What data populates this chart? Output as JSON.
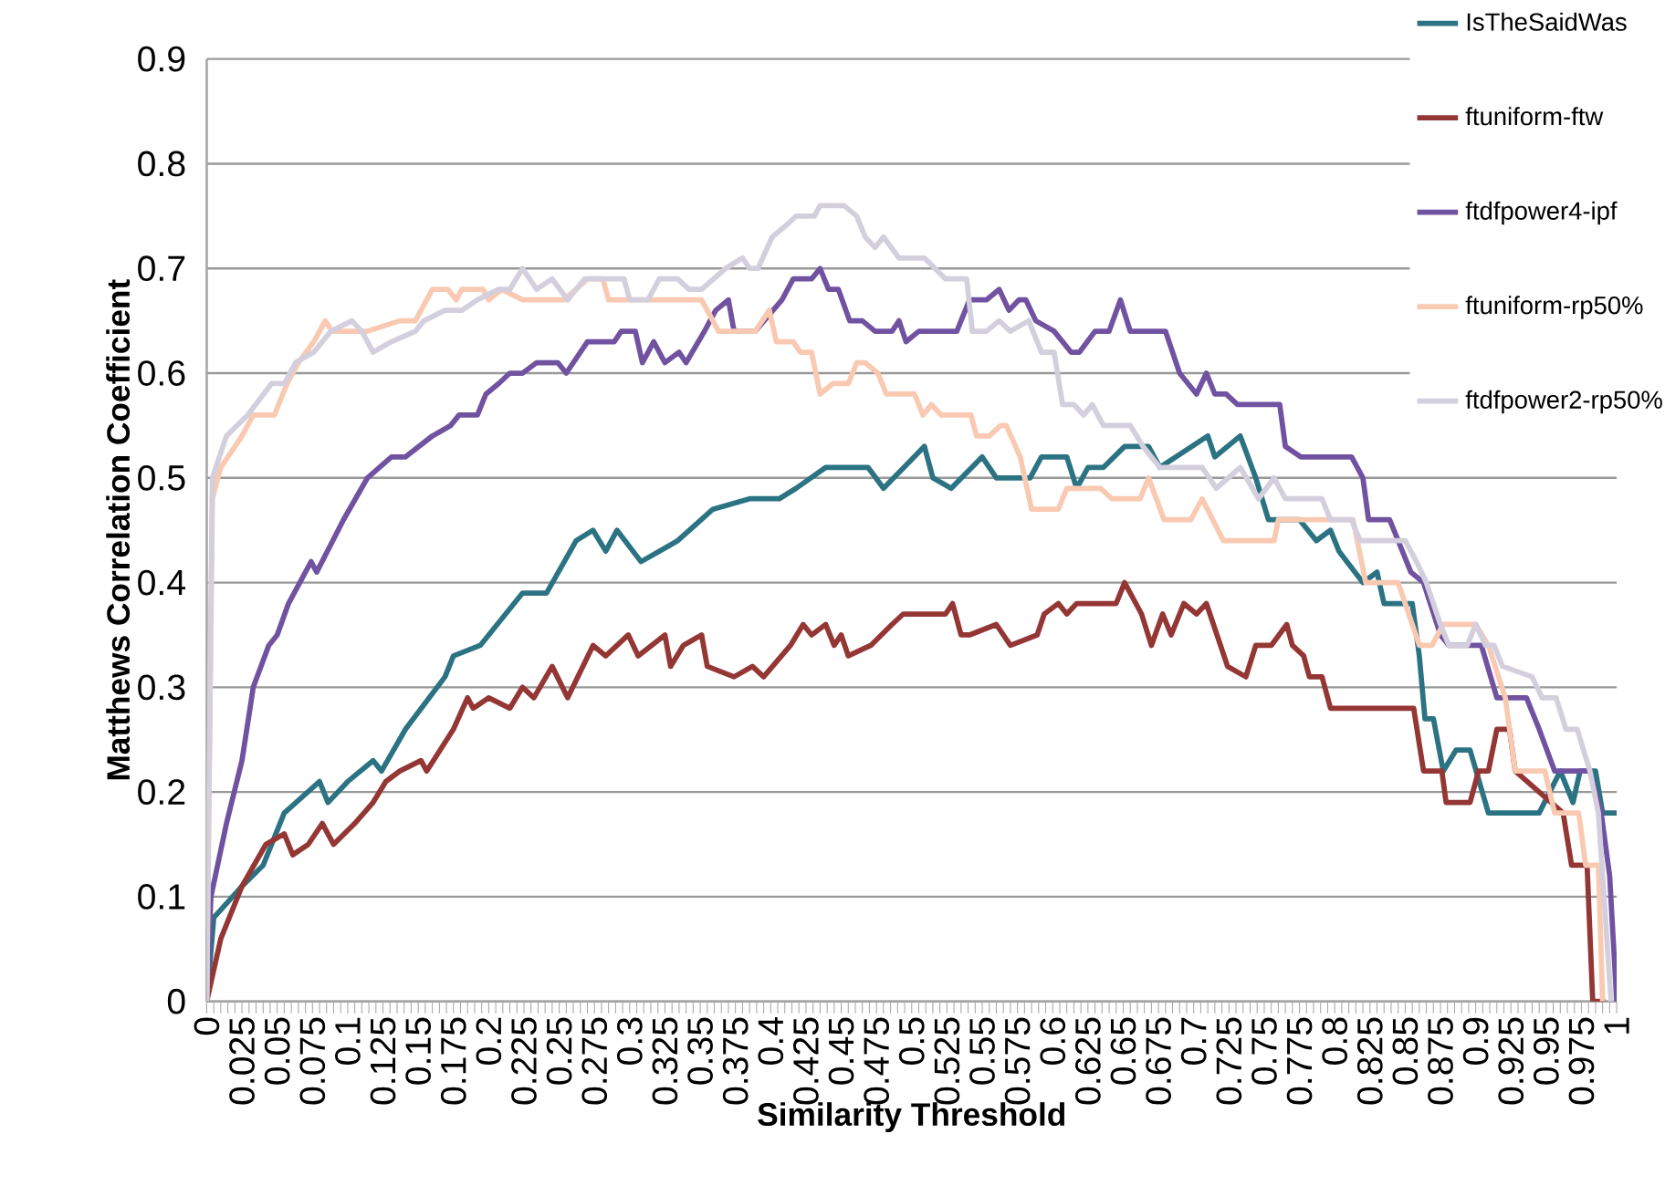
{
  "chart_data": {
    "type": "line",
    "xlabel": "Similarity Threshold",
    "ylabel": "Matthews Correlation Coefficient",
    "xlim": [
      0,
      1
    ],
    "ylim": [
      0,
      0.9
    ],
    "xticks": [
      0,
      0.025,
      0.05,
      0.075,
      0.1,
      0.125,
      0.15,
      0.175,
      0.2,
      0.225,
      0.25,
      0.275,
      0.3,
      0.325,
      0.35,
      0.375,
      0.4,
      0.425,
      0.45,
      0.475,
      0.5,
      0.525,
      0.55,
      0.575,
      0.6,
      0.625,
      0.65,
      0.675,
      0.7,
      0.725,
      0.75,
      0.775,
      0.8,
      0.825,
      0.85,
      0.875,
      0.9,
      0.925,
      0.95,
      0.975,
      1
    ],
    "yticks": [
      0,
      0.1,
      0.2,
      0.3,
      0.4,
      0.5,
      0.6,
      0.7,
      0.8,
      0.9
    ],
    "grid": "y",
    "legend": "top right",
    "marker": "none",
    "line_style": "solid",
    "series": [
      {
        "name": "IsTheSaidWas",
        "color": "#2b7383",
        "x": [
          0,
          0.005,
          0.025,
          0.04,
          0.055,
          0.08,
          0.086,
          0.1,
          0.118,
          0.124,
          0.141,
          0.169,
          0.175,
          0.194,
          0.224,
          0.241,
          0.262,
          0.274,
          0.283,
          0.291,
          0.308,
          0.321,
          0.334,
          0.359,
          0.385,
          0.406,
          0.418,
          0.439,
          0.469,
          0.48,
          0.509,
          0.515,
          0.528,
          0.55,
          0.56,
          0.584,
          0.592,
          0.61,
          0.617,
          0.625,
          0.636,
          0.651,
          0.668,
          0.676,
          0.71,
          0.715,
          0.733,
          0.744,
          0.753,
          0.775,
          0.787,
          0.797,
          0.803,
          0.82,
          0.83,
          0.835,
          0.855,
          0.86,
          0.864,
          0.87,
          0.877,
          0.886,
          0.896,
          0.909,
          0.945,
          0.96,
          0.969,
          0.974,
          0.985,
          0.99,
          1
        ],
        "values": [
          0,
          0.08,
          0.11,
          0.13,
          0.18,
          0.21,
          0.19,
          0.21,
          0.23,
          0.22,
          0.26,
          0.31,
          0.33,
          0.34,
          0.39,
          0.39,
          0.44,
          0.45,
          0.43,
          0.45,
          0.42,
          0.43,
          0.44,
          0.47,
          0.48,
          0.48,
          0.49,
          0.51,
          0.51,
          0.49,
          0.53,
          0.5,
          0.49,
          0.52,
          0.5,
          0.5,
          0.52,
          0.52,
          0.49,
          0.51,
          0.51,
          0.53,
          0.53,
          0.51,
          0.54,
          0.52,
          0.54,
          0.5,
          0.46,
          0.46,
          0.44,
          0.45,
          0.43,
          0.4,
          0.41,
          0.38,
          0.38,
          0.33,
          0.27,
          0.27,
          0.22,
          0.24,
          0.24,
          0.18,
          0.18,
          0.22,
          0.19,
          0.22,
          0.22,
          0.18,
          0.18
        ]
      },
      {
        "name": "ftuniform-ftw",
        "color": "#943634",
        "x": [
          0,
          0.01,
          0.025,
          0.042,
          0.055,
          0.061,
          0.072,
          0.082,
          0.09,
          0.105,
          0.118,
          0.127,
          0.137,
          0.152,
          0.156,
          0.175,
          0.185,
          0.189,
          0.2,
          0.215,
          0.224,
          0.232,
          0.245,
          0.256,
          0.274,
          0.283,
          0.291,
          0.299,
          0.306,
          0.325,
          0.329,
          0.338,
          0.351,
          0.355,
          0.374,
          0.387,
          0.395,
          0.414,
          0.423,
          0.429,
          0.439,
          0.445,
          0.45,
          0.455,
          0.471,
          0.486,
          0.494,
          0.524,
          0.529,
          0.535,
          0.541,
          0.56,
          0.57,
          0.589,
          0.594,
          0.604,
          0.61,
          0.617,
          0.645,
          0.651,
          0.655,
          0.663,
          0.67,
          0.678,
          0.684,
          0.693,
          0.702,
          0.709,
          0.724,
          0.737,
          0.744,
          0.755,
          0.766,
          0.77,
          0.778,
          0.782,
          0.791,
          0.797,
          0.856,
          0.863,
          0.876,
          0.879,
          0.896,
          0.902,
          0.909,
          0.915,
          0.924,
          0.928,
          0.962,
          0.968,
          0.979,
          0.983,
          0.992
        ],
        "values": [
          0,
          0.06,
          0.11,
          0.15,
          0.16,
          0.14,
          0.15,
          0.17,
          0.15,
          0.17,
          0.19,
          0.21,
          0.22,
          0.23,
          0.22,
          0.26,
          0.29,
          0.28,
          0.29,
          0.28,
          0.3,
          0.29,
          0.32,
          0.29,
          0.34,
          0.33,
          0.34,
          0.35,
          0.33,
          0.35,
          0.32,
          0.34,
          0.35,
          0.32,
          0.31,
          0.32,
          0.31,
          0.34,
          0.36,
          0.35,
          0.36,
          0.34,
          0.35,
          0.33,
          0.34,
          0.36,
          0.37,
          0.37,
          0.38,
          0.35,
          0.35,
          0.36,
          0.34,
          0.35,
          0.37,
          0.38,
          0.37,
          0.38,
          0.38,
          0.4,
          0.39,
          0.37,
          0.34,
          0.37,
          0.35,
          0.38,
          0.37,
          0.38,
          0.32,
          0.31,
          0.34,
          0.34,
          0.36,
          0.34,
          0.33,
          0.31,
          0.31,
          0.28,
          0.28,
          0.22,
          0.22,
          0.19,
          0.19,
          0.22,
          0.22,
          0.26,
          0.26,
          0.22,
          0.18,
          0.13,
          0.13,
          0,
          0
        ]
      },
      {
        "name": "ftdfpower4-ipf",
        "color": "#7052a0",
        "x": [
          0,
          0.003,
          0.014,
          0.025,
          0.033,
          0.044,
          0.05,
          0.058,
          0.074,
          0.078,
          0.097,
          0.114,
          0.131,
          0.141,
          0.16,
          0.173,
          0.179,
          0.192,
          0.198,
          0.207,
          0.215,
          0.224,
          0.234,
          0.249,
          0.255,
          0.27,
          0.289,
          0.294,
          0.304,
          0.309,
          0.317,
          0.325,
          0.335,
          0.34,
          0.353,
          0.361,
          0.37,
          0.374,
          0.389,
          0.408,
          0.416,
          0.429,
          0.435,
          0.441,
          0.448,
          0.456,
          0.465,
          0.474,
          0.486,
          0.491,
          0.496,
          0.505,
          0.532,
          0.541,
          0.553,
          0.562,
          0.569,
          0.576,
          0.581,
          0.588,
          0.601,
          0.613,
          0.619,
          0.63,
          0.64,
          0.648,
          0.655,
          0.68,
          0.69,
          0.702,
          0.709,
          0.715,
          0.723,
          0.731,
          0.761,
          0.765,
          0.776,
          0.812,
          0.82,
          0.824,
          0.839,
          0.845,
          0.854,
          0.863,
          0.875,
          0.881,
          0.904,
          0.915,
          0.936,
          0.945,
          0.956,
          0.981,
          0.989,
          0.995,
          1
        ],
        "values": [
          0,
          0.1,
          0.17,
          0.23,
          0.3,
          0.34,
          0.35,
          0.38,
          0.42,
          0.41,
          0.46,
          0.5,
          0.52,
          0.52,
          0.54,
          0.55,
          0.56,
          0.56,
          0.58,
          0.59,
          0.6,
          0.6,
          0.61,
          0.61,
          0.6,
          0.63,
          0.63,
          0.64,
          0.64,
          0.61,
          0.63,
          0.61,
          0.62,
          0.61,
          0.64,
          0.66,
          0.67,
          0.64,
          0.64,
          0.67,
          0.69,
          0.69,
          0.7,
          0.68,
          0.68,
          0.65,
          0.65,
          0.64,
          0.64,
          0.65,
          0.63,
          0.64,
          0.64,
          0.67,
          0.67,
          0.68,
          0.66,
          0.67,
          0.67,
          0.65,
          0.64,
          0.62,
          0.62,
          0.64,
          0.64,
          0.67,
          0.64,
          0.64,
          0.6,
          0.58,
          0.6,
          0.58,
          0.58,
          0.57,
          0.57,
          0.53,
          0.52,
          0.52,
          0.5,
          0.46,
          0.46,
          0.44,
          0.41,
          0.4,
          0.35,
          0.34,
          0.34,
          0.29,
          0.29,
          0.26,
          0.22,
          0.22,
          0.18,
          0.12,
          0
        ]
      },
      {
        "name": "ftuniform-rp50%",
        "color": "#f9c9b2",
        "x": [
          0,
          0.004,
          0.01,
          0.025,
          0.033,
          0.048,
          0.057,
          0.065,
          0.076,
          0.084,
          0.089,
          0.105,
          0.114,
          0.137,
          0.148,
          0.16,
          0.171,
          0.177,
          0.181,
          0.196,
          0.2,
          0.209,
          0.224,
          0.245,
          0.253,
          0.262,
          0.27,
          0.281,
          0.285,
          0.296,
          0.313,
          0.351,
          0.363,
          0.381,
          0.389,
          0.399,
          0.404,
          0.416,
          0.421,
          0.429,
          0.435,
          0.444,
          0.455,
          0.461,
          0.467,
          0.476,
          0.482,
          0.502,
          0.508,
          0.514,
          0.521,
          0.542,
          0.546,
          0.555,
          0.563,
          0.567,
          0.577,
          0.585,
          0.604,
          0.61,
          0.634,
          0.642,
          0.662,
          0.668,
          0.679,
          0.698,
          0.706,
          0.721,
          0.757,
          0.76,
          0.813,
          0.822,
          0.845,
          0.86,
          0.869,
          0.877,
          0.9,
          0.909,
          0.921,
          0.928,
          0.949,
          0.956,
          0.973,
          0.978,
          0.987,
          0.99
        ],
        "values": [
          0,
          0.48,
          0.51,
          0.54,
          0.56,
          0.56,
          0.59,
          0.61,
          0.63,
          0.65,
          0.64,
          0.64,
          0.64,
          0.65,
          0.65,
          0.68,
          0.68,
          0.67,
          0.68,
          0.68,
          0.67,
          0.68,
          0.67,
          0.67,
          0.67,
          0.68,
          0.69,
          0.69,
          0.67,
          0.67,
          0.67,
          0.67,
          0.64,
          0.64,
          0.64,
          0.66,
          0.63,
          0.63,
          0.62,
          0.62,
          0.58,
          0.59,
          0.59,
          0.61,
          0.61,
          0.6,
          0.58,
          0.58,
          0.56,
          0.57,
          0.56,
          0.56,
          0.54,
          0.54,
          0.55,
          0.55,
          0.52,
          0.47,
          0.47,
          0.49,
          0.49,
          0.48,
          0.48,
          0.5,
          0.46,
          0.46,
          0.48,
          0.44,
          0.44,
          0.46,
          0.46,
          0.4,
          0.4,
          0.34,
          0.34,
          0.36,
          0.36,
          0.34,
          0.29,
          0.22,
          0.22,
          0.18,
          0.18,
          0.13,
          0.13,
          0
        ]
      },
      {
        "name": "ftdfpower2-rp50%",
        "color": "#d3cfdd",
        "x": [
          0,
          0.004,
          0.014,
          0.029,
          0.046,
          0.055,
          0.063,
          0.076,
          0.088,
          0.103,
          0.11,
          0.118,
          0.131,
          0.148,
          0.154,
          0.169,
          0.181,
          0.192,
          0.207,
          0.215,
          0.224,
          0.234,
          0.245,
          0.256,
          0.268,
          0.296,
          0.3,
          0.313,
          0.321,
          0.334,
          0.342,
          0.351,
          0.368,
          0.38,
          0.385,
          0.391,
          0.401,
          0.41,
          0.418,
          0.431,
          0.435,
          0.452,
          0.461,
          0.467,
          0.474,
          0.48,
          0.491,
          0.509,
          0.524,
          0.539,
          0.543,
          0.553,
          0.562,
          0.57,
          0.583,
          0.592,
          0.601,
          0.607,
          0.615,
          0.622,
          0.628,
          0.636,
          0.655,
          0.664,
          0.676,
          0.706,
          0.716,
          0.733,
          0.746,
          0.757,
          0.765,
          0.791,
          0.797,
          0.812,
          0.818,
          0.85,
          0.858,
          0.865,
          0.875,
          0.881,
          0.894,
          0.9,
          0.907,
          0.913,
          0.919,
          0.94,
          0.947,
          0.957,
          0.964,
          0.972,
          0.981,
          0.987,
          0.991,
          0.996
        ],
        "values": [
          0,
          0.5,
          0.54,
          0.56,
          0.59,
          0.59,
          0.61,
          0.62,
          0.64,
          0.65,
          0.64,
          0.62,
          0.63,
          0.64,
          0.65,
          0.66,
          0.66,
          0.67,
          0.68,
          0.68,
          0.7,
          0.68,
          0.69,
          0.67,
          0.69,
          0.69,
          0.67,
          0.67,
          0.69,
          0.69,
          0.68,
          0.68,
          0.7,
          0.71,
          0.7,
          0.7,
          0.73,
          0.74,
          0.75,
          0.75,
          0.76,
          0.76,
          0.75,
          0.73,
          0.72,
          0.73,
          0.71,
          0.71,
          0.69,
          0.69,
          0.64,
          0.64,
          0.65,
          0.64,
          0.65,
          0.62,
          0.62,
          0.57,
          0.57,
          0.56,
          0.57,
          0.55,
          0.55,
          0.53,
          0.51,
          0.51,
          0.49,
          0.51,
          0.48,
          0.5,
          0.48,
          0.48,
          0.46,
          0.46,
          0.44,
          0.44,
          0.42,
          0.4,
          0.36,
          0.34,
          0.34,
          0.36,
          0.34,
          0.34,
          0.32,
          0.31,
          0.29,
          0.29,
          0.26,
          0.26,
          0.22,
          0.18,
          0.1,
          0
        ]
      }
    ]
  }
}
